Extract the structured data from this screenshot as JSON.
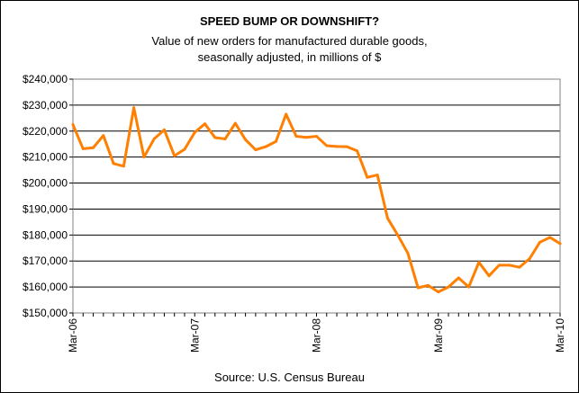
{
  "chart_data": {
    "type": "line",
    "title": "SPEED BUMP OR DOWNSHIFT?",
    "subtitle_lines": [
      "Value of new orders for manufactured durable goods,",
      "seasonally adjusted, in millions of $"
    ],
    "source": "Source: U.S. Census Bureau",
    "xlabel": "",
    "ylabel": "",
    "ylim": [
      150000,
      240000
    ],
    "grid": "horizontal",
    "legend": "none",
    "line_color": "#ff7f00",
    "y_tick_values": [
      150000,
      160000,
      170000,
      180000,
      190000,
      200000,
      210000,
      220000,
      230000,
      240000
    ],
    "y_tick_labels": [
      "$150,000",
      "$160,000",
      "$170,000",
      "$180,000",
      "$190,000",
      "$200,000",
      "$210,000",
      "$220,000",
      "$230,000",
      "$240,000"
    ],
    "x_tick_labels": [
      "Mar-06",
      "Mar-07",
      "Mar-08",
      "Mar-09",
      "Mar-10"
    ],
    "x_tick_indices": [
      0,
      12,
      24,
      36,
      48
    ],
    "x": [
      "Mar-06",
      "Apr-06",
      "May-06",
      "Jun-06",
      "Jul-06",
      "Aug-06",
      "Sep-06",
      "Oct-06",
      "Nov-06",
      "Dec-06",
      "Jan-07",
      "Feb-07",
      "Mar-07",
      "Apr-07",
      "May-07",
      "Jun-07",
      "Jul-07",
      "Aug-07",
      "Sep-07",
      "Oct-07",
      "Nov-07",
      "Dec-07",
      "Jan-08",
      "Feb-08",
      "Mar-08",
      "Apr-08",
      "May-08",
      "Jun-08",
      "Jul-08",
      "Aug-08",
      "Sep-08",
      "Oct-08",
      "Nov-08",
      "Dec-08",
      "Jan-09",
      "Feb-09",
      "Mar-09",
      "Apr-09",
      "May-09",
      "Jun-09",
      "Jul-09",
      "Aug-09",
      "Sep-09",
      "Oct-09",
      "Nov-09",
      "Dec-09",
      "Jan-10",
      "Feb-10",
      "Mar-10"
    ],
    "values": [
      222500,
      213200,
      213600,
      218300,
      207500,
      206500,
      229000,
      210000,
      217000,
      220500,
      210500,
      213000,
      219500,
      222800,
      217500,
      217000,
      223000,
      216700,
      212800,
      214000,
      216000,
      226500,
      218000,
      217600,
      218000,
      214400,
      214100,
      214000,
      212400,
      202200,
      203100,
      186500,
      180000,
      173000,
      159700,
      160600,
      158100,
      160000,
      163500,
      160000,
      169500,
      164300,
      168400,
      168400,
      167600,
      170900,
      177200,
      179100,
      176700
    ]
  }
}
